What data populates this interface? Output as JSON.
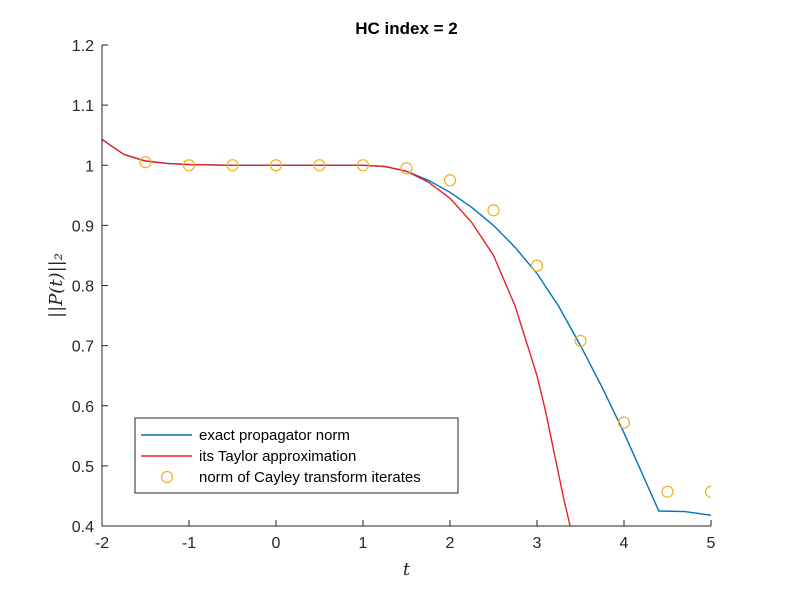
{
  "chart_data": {
    "type": "line",
    "title": "HC index = 2",
    "xlabel": "t",
    "ylabel": "||P(t)||₂",
    "xlim": [
      -2,
      5
    ],
    "ylim": [
      0.4,
      1.2
    ],
    "xticks": [
      -2,
      -1,
      0,
      1,
      2,
      3,
      4,
      5
    ],
    "yticks": [
      0.4,
      0.5,
      0.6,
      0.7,
      0.8,
      0.9,
      1,
      1.1,
      1.2
    ],
    "xtick_labels": [
      "-2",
      "-1",
      "0",
      "1",
      "2",
      "3",
      "4",
      "5"
    ],
    "ytick_labels": [
      "0.4",
      "0.5",
      "0.6",
      "0.7",
      "0.8",
      "0.9",
      "1",
      "1.1",
      "1.2"
    ],
    "grid": false,
    "legend_position": "bottom-left",
    "series": [
      {
        "name": "exact propagator norm",
        "type": "line",
        "color": "#0072bd",
        "x": [
          -2,
          -1.75,
          -1.5,
          -1.25,
          -1,
          -0.5,
          0,
          0.5,
          1,
          1.25,
          1.5,
          1.75,
          2,
          2.25,
          2.5,
          2.75,
          3,
          3.25,
          3.5,
          3.75,
          4,
          4.2,
          4.4,
          4.7,
          5
        ],
        "y": [
          1.043,
          1.018,
          1.007,
          1.003,
          1.001,
          1.0,
          1.0,
          1.0,
          1.0,
          0.998,
          0.99,
          0.975,
          0.955,
          0.93,
          0.9,
          0.863,
          0.82,
          0.765,
          0.7,
          0.63,
          0.555,
          0.49,
          0.425,
          0.424,
          0.418
        ]
      },
      {
        "name": "its Taylor approximation",
        "type": "line",
        "color": "#e8202a",
        "x": [
          -2,
          -1.75,
          -1.5,
          -1.25,
          -1,
          -0.5,
          0,
          0.5,
          1,
          1.25,
          1.5,
          1.75,
          2,
          2.25,
          2.5,
          2.75,
          3,
          3.1,
          3.2,
          3.3,
          3.38
        ],
        "y": [
          1.043,
          1.018,
          1.007,
          1.003,
          1.001,
          1.0,
          1.0,
          1.0,
          1.0,
          0.998,
          0.99,
          0.972,
          0.945,
          0.905,
          0.85,
          0.765,
          0.65,
          0.59,
          0.52,
          0.45,
          0.4
        ]
      },
      {
        "name": "norm of Cayley transform iterates",
        "type": "scatter",
        "marker": "circle",
        "color": "#edb120",
        "x": [
          -1.5,
          -1,
          -0.5,
          0,
          0.5,
          1,
          1.5,
          2,
          2.5,
          3,
          3.5,
          4,
          4.5,
          5
        ],
        "y": [
          1.005,
          1.0,
          1.0,
          1.0,
          1.0,
          1.0,
          0.995,
          0.975,
          0.925,
          0.833,
          0.708,
          0.572,
          0.457,
          0.457
        ]
      }
    ]
  }
}
